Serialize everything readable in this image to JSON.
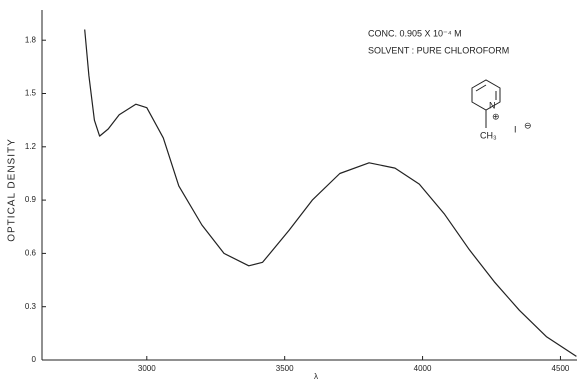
{
  "chart_data": {
    "type": "line",
    "ylabel": "OPTICAL DENSITY",
    "xlabel": "λ",
    "annotations": [
      "CONC. 0.905 X 10⁻⁴ M",
      "SOLVENT : PURE CHLOROFORM"
    ],
    "structure_labels": [
      "N",
      "⊕",
      "CH₃",
      "I",
      "⊖"
    ],
    "x": [
      2775,
      2790,
      2810,
      2829,
      2860,
      2900,
      2960,
      3000,
      3060,
      3116,
      3200,
      3280,
      3370,
      3420,
      3516,
      3600,
      3700,
      3806,
      3900,
      3988,
      4080,
      4170,
      4260,
      4351,
      4450,
      4558
    ],
    "series": [
      {
        "color": "#222222",
        "values": [
          1.86,
          1.6,
          1.35,
          1.26,
          1.3,
          1.38,
          1.44,
          1.42,
          1.25,
          0.98,
          0.76,
          0.6,
          0.53,
          0.55,
          0.73,
          0.9,
          1.05,
          1.11,
          1.08,
          0.99,
          0.82,
          0.62,
          0.44,
          0.28,
          0.13,
          0.02
        ]
      }
    ],
    "xlim": [
      2620,
      4560
    ],
    "xticks": [
      3000,
      3500,
      4000,
      4500
    ],
    "ylim": [
      0,
      1.97
    ],
    "yticks": [
      0,
      0.3,
      0.6,
      0.9,
      1.2,
      1.5,
      1.8
    ]
  }
}
